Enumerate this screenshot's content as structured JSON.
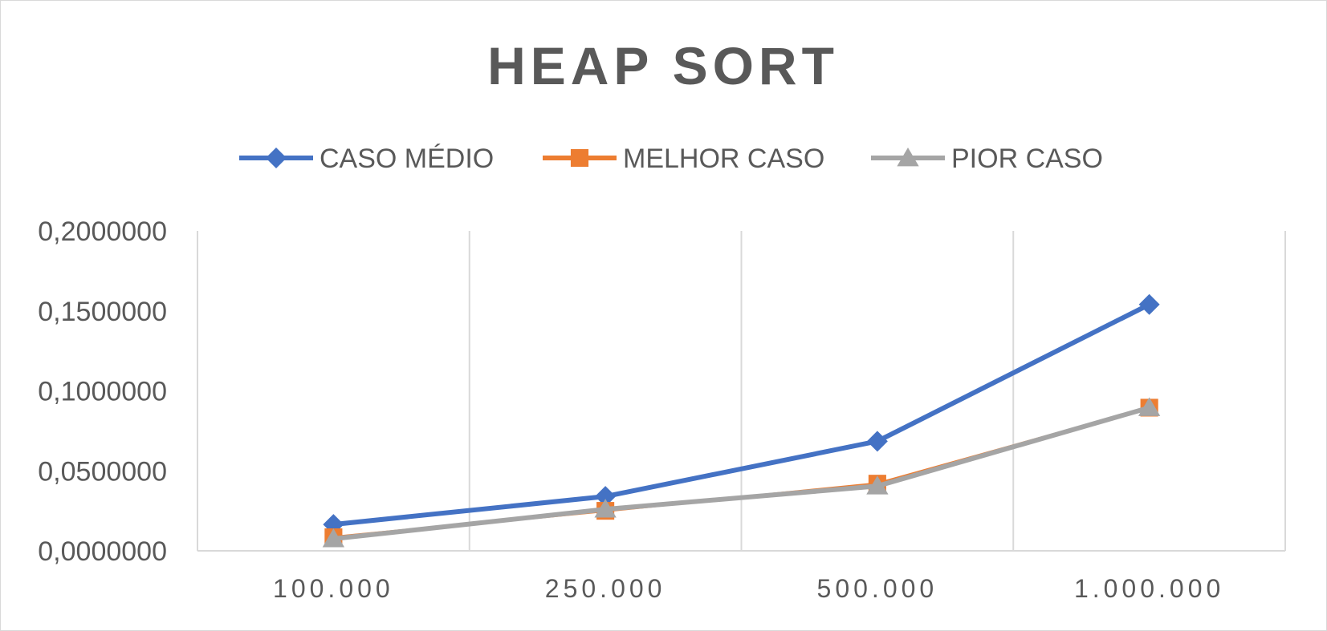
{
  "chart_data": {
    "type": "line",
    "title": "HEAP SORT",
    "xlabel": "",
    "ylabel": "",
    "categories": [
      "100.000",
      "250.000",
      "500.000",
      "1.000.000"
    ],
    "ylim": [
      0,
      0.2
    ],
    "yticks": [
      "0,0000000",
      "0,0500000",
      "0,1000000",
      "0,1500000",
      "0,2000000"
    ],
    "grid": "vertical",
    "legend": "top",
    "series": [
      {
        "name": "CASO MÉDIO",
        "color": "#4472c4",
        "marker": "diamond",
        "values": [
          0.0165,
          0.034,
          0.0685,
          0.154
        ]
      },
      {
        "name": "MELHOR CASO",
        "color": "#ed7d31",
        "marker": "square",
        "values": [
          0.0085,
          0.025,
          0.042,
          0.0895
        ]
      },
      {
        "name": "PIOR CASO",
        "color": "#a5a5a5",
        "marker": "triangle",
        "values": [
          0.0075,
          0.026,
          0.0405,
          0.0895
        ]
      }
    ]
  }
}
